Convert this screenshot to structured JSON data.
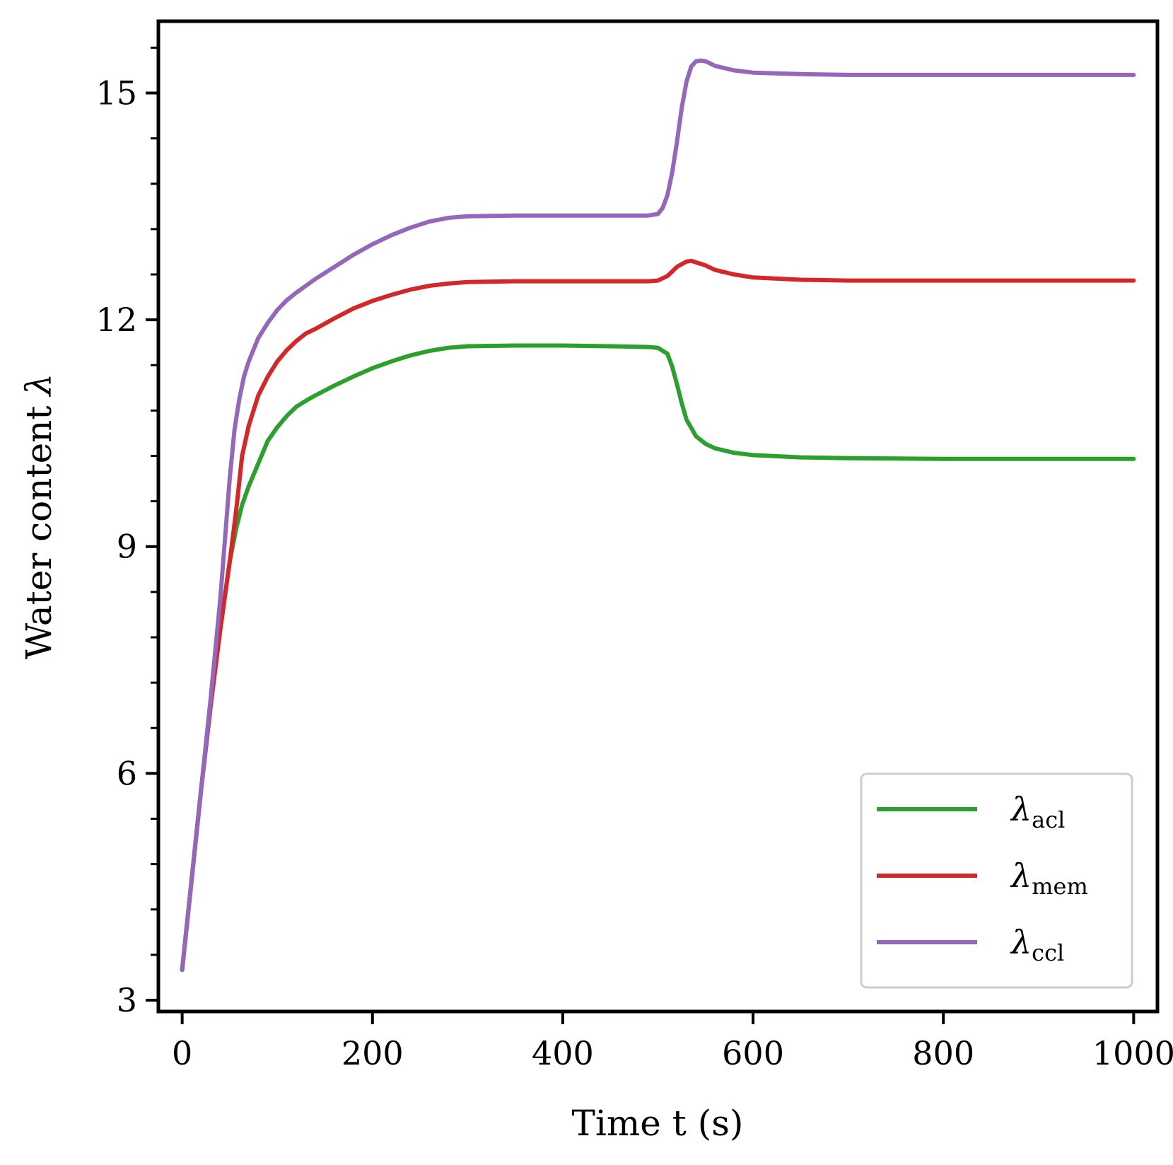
{
  "chart_data": {
    "type": "line",
    "xlabel": "Time t (s)",
    "ylabel": "Water content",
    "ylabel_symbol": "λ",
    "xlim": [
      -25,
      1025
    ],
    "ylim": [
      2.85,
      15.95
    ],
    "x_ticks": [
      0,
      200,
      400,
      600,
      800,
      1000
    ],
    "x_tick_labels": [
      "0",
      "200",
      "400",
      "600",
      "800",
      "1000"
    ],
    "y_ticks": [
      3,
      6,
      9,
      12,
      15
    ],
    "y_tick_labels": [
      "3",
      "6",
      "9",
      "12",
      "15"
    ],
    "y_minor_ticks": [
      3.6,
      4.2,
      4.8,
      5.4,
      6.6,
      7.2,
      7.8,
      8.4,
      9.6,
      10.2,
      10.8,
      11.4,
      12.6,
      13.2,
      13.8,
      14.4,
      15.6
    ],
    "grid": false,
    "legend_position": "bottom-right",
    "series": [
      {
        "name": "λacl",
        "symbol": "λ",
        "subscript": "acl",
        "color": "#2ca02c",
        "x": [
          0,
          10,
          20,
          30,
          40,
          50,
          57,
          63,
          70,
          80,
          90,
          100,
          110,
          120,
          130,
          140,
          160,
          180,
          200,
          220,
          240,
          260,
          280,
          300,
          350,
          400,
          450,
          490,
          500,
          510,
          515,
          520,
          525,
          530,
          540,
          550,
          560,
          580,
          600,
          650,
          700,
          800,
          900,
          1000
        ],
        "y": [
          3.4,
          4.6,
          5.8,
          6.9,
          7.9,
          8.8,
          9.25,
          9.55,
          9.8,
          10.1,
          10.4,
          10.58,
          10.73,
          10.85,
          10.93,
          11.0,
          11.13,
          11.25,
          11.36,
          11.45,
          11.53,
          11.59,
          11.63,
          11.65,
          11.66,
          11.66,
          11.65,
          11.64,
          11.63,
          11.55,
          11.38,
          11.15,
          10.9,
          10.68,
          10.46,
          10.36,
          10.3,
          10.24,
          10.21,
          10.18,
          10.17,
          10.16,
          10.16,
          10.16
        ]
      },
      {
        "name": "λmem",
        "symbol": "λ",
        "subscript": "mem",
        "color": "#d62728",
        "x": [
          0,
          10,
          20,
          30,
          40,
          50,
          57,
          63,
          70,
          80,
          90,
          100,
          110,
          120,
          130,
          140,
          160,
          180,
          200,
          220,
          240,
          260,
          280,
          300,
          350,
          400,
          450,
          490,
          500,
          510,
          520,
          530,
          535,
          540,
          550,
          560,
          580,
          600,
          650,
          700,
          800,
          900,
          1000
        ],
        "y": [
          3.4,
          4.6,
          5.8,
          6.9,
          7.9,
          8.8,
          9.5,
          10.2,
          10.6,
          11.0,
          11.25,
          11.45,
          11.6,
          11.72,
          11.82,
          11.88,
          12.02,
          12.15,
          12.25,
          12.33,
          12.4,
          12.45,
          12.48,
          12.5,
          12.51,
          12.51,
          12.51,
          12.51,
          12.52,
          12.58,
          12.7,
          12.77,
          12.78,
          12.76,
          12.72,
          12.66,
          12.6,
          12.56,
          12.53,
          12.52,
          12.52,
          12.52,
          12.52
        ]
      },
      {
        "name": "λccl",
        "symbol": "λ",
        "subscript": "ccl",
        "color": "#9467bd",
        "x": [
          0,
          10,
          20,
          30,
          40,
          50,
          55,
          60,
          65,
          70,
          80,
          90,
          100,
          110,
          120,
          130,
          140,
          160,
          180,
          200,
          220,
          240,
          260,
          280,
          300,
          350,
          400,
          450,
          490,
          500,
          505,
          510,
          515,
          520,
          525,
          530,
          535,
          540,
          545,
          550,
          560,
          580,
          600,
          650,
          700,
          800,
          900,
          1000
        ],
        "y": [
          3.4,
          4.6,
          5.8,
          7.0,
          8.3,
          9.9,
          10.55,
          10.95,
          11.25,
          11.45,
          11.76,
          11.96,
          12.13,
          12.26,
          12.36,
          12.45,
          12.54,
          12.7,
          12.86,
          13.0,
          13.12,
          13.22,
          13.3,
          13.35,
          13.37,
          13.38,
          13.38,
          13.38,
          13.38,
          13.4,
          13.48,
          13.65,
          13.95,
          14.35,
          14.8,
          15.15,
          15.35,
          15.42,
          15.43,
          15.42,
          15.36,
          15.3,
          15.27,
          15.25,
          15.24,
          15.24,
          15.24,
          15.24
        ]
      }
    ]
  }
}
